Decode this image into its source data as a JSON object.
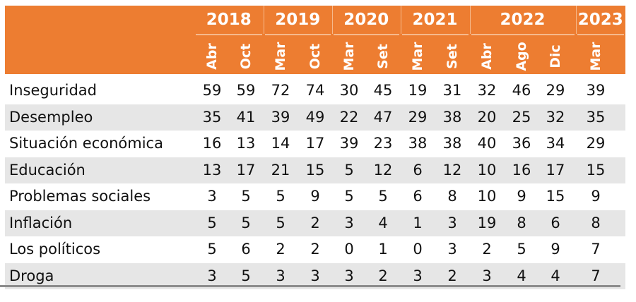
{
  "chart_data": {
    "type": "table",
    "years": [
      {
        "label": "2018",
        "span": 2
      },
      {
        "label": "2019",
        "span": 2
      },
      {
        "label": "2020",
        "span": 2
      },
      {
        "label": "2021",
        "span": 2
      },
      {
        "label": "2022",
        "span": 3
      },
      {
        "label": "2023",
        "span": 1
      }
    ],
    "columns": [
      "Abr",
      "Oct",
      "Mar",
      "Oct",
      "Mar",
      "Set",
      "Mar",
      "Set",
      "Abr",
      "Ago",
      "Dic",
      "Mar"
    ],
    "rows": [
      {
        "label": "Inseguridad",
        "values": [
          59,
          59,
          72,
          74,
          30,
          45,
          19,
          31,
          32,
          46,
          29,
          39
        ]
      },
      {
        "label": "Desempleo",
        "values": [
          35,
          41,
          39,
          49,
          22,
          47,
          29,
          38,
          20,
          25,
          32,
          35
        ]
      },
      {
        "label": "Situación económica",
        "values": [
          16,
          13,
          14,
          17,
          39,
          23,
          38,
          38,
          40,
          36,
          34,
          29
        ]
      },
      {
        "label": "Educación",
        "values": [
          13,
          17,
          21,
          15,
          5,
          12,
          6,
          12,
          10,
          16,
          17,
          15
        ]
      },
      {
        "label": "Problemas sociales",
        "values": [
          3,
          5,
          5,
          9,
          5,
          5,
          6,
          8,
          10,
          9,
          15,
          9
        ]
      },
      {
        "label": "Inflación",
        "values": [
          5,
          5,
          5,
          2,
          3,
          4,
          1,
          3,
          19,
          8,
          6,
          8
        ]
      },
      {
        "label": "Los políticos",
        "values": [
          5,
          6,
          2,
          2,
          0,
          1,
          0,
          3,
          2,
          5,
          9,
          7
        ]
      },
      {
        "label": "Droga",
        "values": [
          3,
          5,
          3,
          3,
          3,
          2,
          3,
          2,
          3,
          4,
          4,
          7
        ]
      }
    ],
    "colors": {
      "header": "#ED7D31",
      "stripe": "#e6e6e6"
    }
  }
}
